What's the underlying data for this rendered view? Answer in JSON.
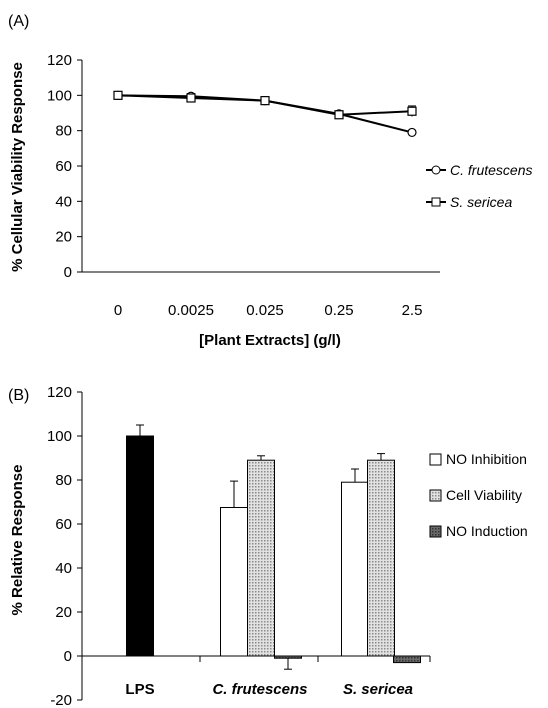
{
  "chart_data": [
    {
      "type": "line",
      "panel_label": "(A)",
      "xlabel": "[Plant Extracts] (g/l)",
      "ylabel": "% Cellular Viability Response",
      "categories": [
        "0",
        "0.0025",
        "0.025",
        "0.25",
        "2.5"
      ],
      "ylim": [
        0,
        120
      ],
      "yticks": [
        0,
        20,
        40,
        60,
        80,
        100,
        120
      ],
      "grid": false,
      "legend_position": "right",
      "series": [
        {
          "name": "C. frutescens",
          "marker": "circle",
          "values": [
            100,
            99.5,
            97,
            89.5,
            79
          ],
          "errors": [
            1.5,
            1.5,
            1,
            1,
            1
          ]
        },
        {
          "name": "S. sericea",
          "marker": "square",
          "values": [
            100,
            98.5,
            97,
            89,
            91
          ],
          "errors": [
            1.5,
            2,
            1,
            1.5,
            3
          ]
        }
      ]
    },
    {
      "type": "bar",
      "panel_label": "(B)",
      "xlabel": "",
      "ylabel": "% Relative Response",
      "categories": [
        "LPS",
        "C. frutescens",
        "S. sericea"
      ],
      "ylim": [
        -20,
        120
      ],
      "yticks": [
        -20,
        0,
        20,
        40,
        60,
        80,
        100,
        120
      ],
      "grid": false,
      "legend_position": "right",
      "lps_value": 100,
      "lps_error": 5,
      "lps_color": "#000000",
      "series": [
        {
          "name": "NO Inhibition",
          "fill": "#ffffff",
          "values": [
            null,
            67.5,
            79
          ],
          "errors": [
            null,
            12,
            6
          ]
        },
        {
          "name": "Cell Viability",
          "fill": "#d0d0d0",
          "values": [
            null,
            89,
            89
          ],
          "errors": [
            null,
            2,
            3
          ]
        },
        {
          "name": "NO Induction",
          "fill": "#555555",
          "values": [
            null,
            -1,
            -3
          ],
          "errors": [
            null,
            5,
            0
          ]
        }
      ]
    }
  ]
}
